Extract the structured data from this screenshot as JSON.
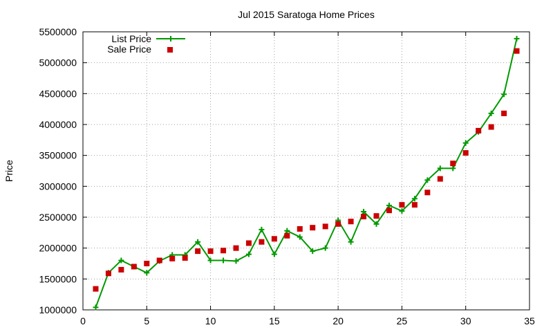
{
  "chart_data": {
    "type": "line",
    "title": "Jul 2015 Saratoga Home Prices",
    "xlabel": "",
    "ylabel": "Price",
    "xlim": [
      0,
      35
    ],
    "ylim": [
      1000000,
      5500000
    ],
    "xticks": [
      0,
      5,
      10,
      15,
      20,
      25,
      30,
      35
    ],
    "yticks": [
      1000000,
      1500000,
      2000000,
      2500000,
      3000000,
      3500000,
      4000000,
      4500000,
      5000000,
      5500000
    ],
    "grid": true,
    "legend_position": "top-left",
    "series": [
      {
        "name": "List Price",
        "style": "line+cross",
        "color": "#009900",
        "x": [
          1,
          2,
          3,
          4,
          5,
          6,
          7,
          8,
          9,
          10,
          11,
          12,
          13,
          14,
          15,
          16,
          17,
          18,
          19,
          20,
          21,
          22,
          23,
          24,
          25,
          26,
          27,
          28,
          29,
          30,
          31,
          32,
          33,
          34
        ],
        "y": [
          1040000,
          1600000,
          1800000,
          1700000,
          1600000,
          1790000,
          1890000,
          1890000,
          2100000,
          1800000,
          1800000,
          1790000,
          1900000,
          2300000,
          1900000,
          2280000,
          2180000,
          1950000,
          2000000,
          2450000,
          2100000,
          2590000,
          2390000,
          2690000,
          2600000,
          2800000,
          3100000,
          3290000,
          3290000,
          3700000,
          3880000,
          4180000,
          4490000,
          5390000
        ]
      },
      {
        "name": "Sale Price",
        "style": "square",
        "color": "#cc0000",
        "x": [
          1,
          2,
          3,
          4,
          5,
          6,
          7,
          8,
          9,
          10,
          11,
          12,
          13,
          14,
          15,
          16,
          17,
          18,
          19,
          20,
          21,
          22,
          23,
          24,
          25,
          26,
          27,
          28,
          29,
          30,
          31,
          32,
          33,
          34
        ],
        "y": [
          1340000,
          1590000,
          1650000,
          1700000,
          1750000,
          1800000,
          1830000,
          1840000,
          1950000,
          1950000,
          1960000,
          2000000,
          2080000,
          2100000,
          2150000,
          2200000,
          2310000,
          2330000,
          2350000,
          2390000,
          2430000,
          2510000,
          2520000,
          2610000,
          2700000,
          2700000,
          2900000,
          3120000,
          3370000,
          3540000,
          3900000,
          3960000,
          4180000,
          5190000
        ]
      }
    ]
  }
}
